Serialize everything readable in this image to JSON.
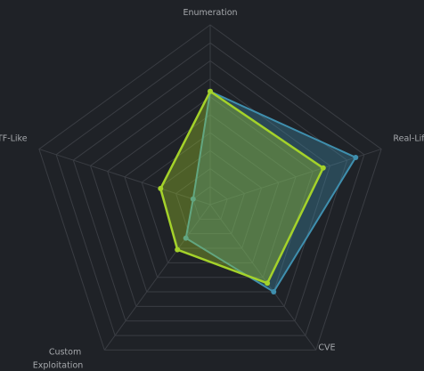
{
  "chart_data": {
    "type": "radar",
    "categories": [
      "Enumeration",
      "Real-Life",
      "CVE",
      "Custom Exploitation",
      "CTF-Like"
    ],
    "rlim": [
      0,
      100
    ],
    "rticks": [
      10,
      20,
      30,
      40,
      50,
      60,
      70,
      80,
      90,
      100
    ],
    "grid": true,
    "series": [
      {
        "color": "#3f8fae",
        "values": [
          63,
          85,
          60,
          23,
          10
        ]
      },
      {
        "color": "#a4d22a",
        "values": [
          63,
          66,
          54,
          31,
          29
        ]
      }
    ]
  }
}
